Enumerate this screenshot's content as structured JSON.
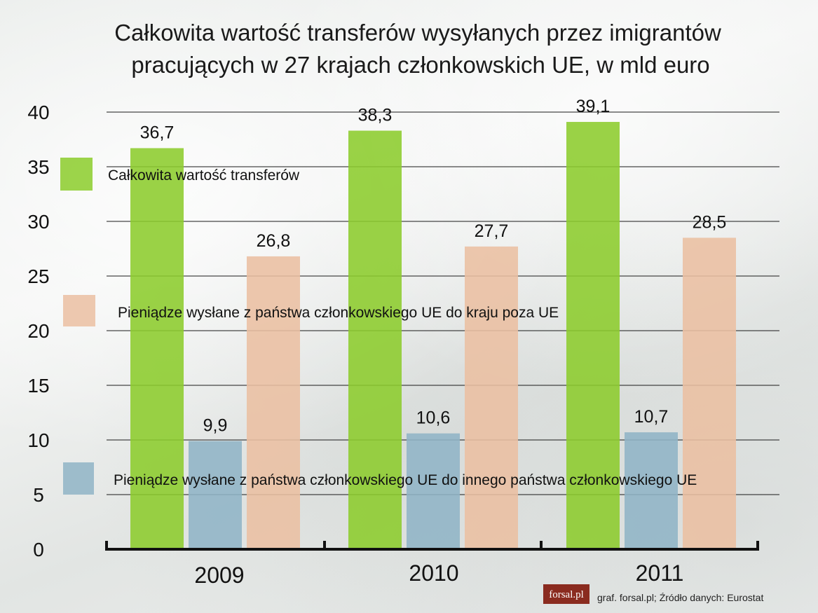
{
  "chart_data": {
    "type": "bar",
    "title": [
      "Całkowita wartość transferów wysyłanych przez imigrantów",
      "pracujących w 27 krajach członkowskich UE, w mld euro"
    ],
    "categories": [
      "2009",
      "2010",
      "2011"
    ],
    "ylim": [
      0,
      40
    ],
    "yticks": [
      0,
      5,
      10,
      15,
      20,
      25,
      30,
      35,
      40
    ],
    "grid": true,
    "series": [
      {
        "name": "Całkowita wartość transferów",
        "values": [
          36.7,
          38.3,
          39.1
        ],
        "labels": [
          "36,7",
          "38,3",
          "39,1"
        ],
        "color": "#8ccc2c"
      },
      {
        "name": "Pieniądze wysłane z państwa członkowskiego UE do innego państwa członkowskiego UE",
        "values": [
          9.9,
          10.6,
          10.7
        ],
        "labels": [
          "9,9",
          "10,6",
          "10,7"
        ],
        "color": "#8fb4c6"
      },
      {
        "name": "Pieniądze wysłane z państwa członkowskiego UE do kraju poza UE",
        "values": [
          26.8,
          27.7,
          28.5
        ],
        "labels": [
          "26,8",
          "27,7",
          "28,5"
        ],
        "color": "#ebbfa2"
      }
    ]
  },
  "footer": {
    "logo": "forsal.pl",
    "source": "graf. forsal.pl; Źródło danych: Eurostat"
  }
}
